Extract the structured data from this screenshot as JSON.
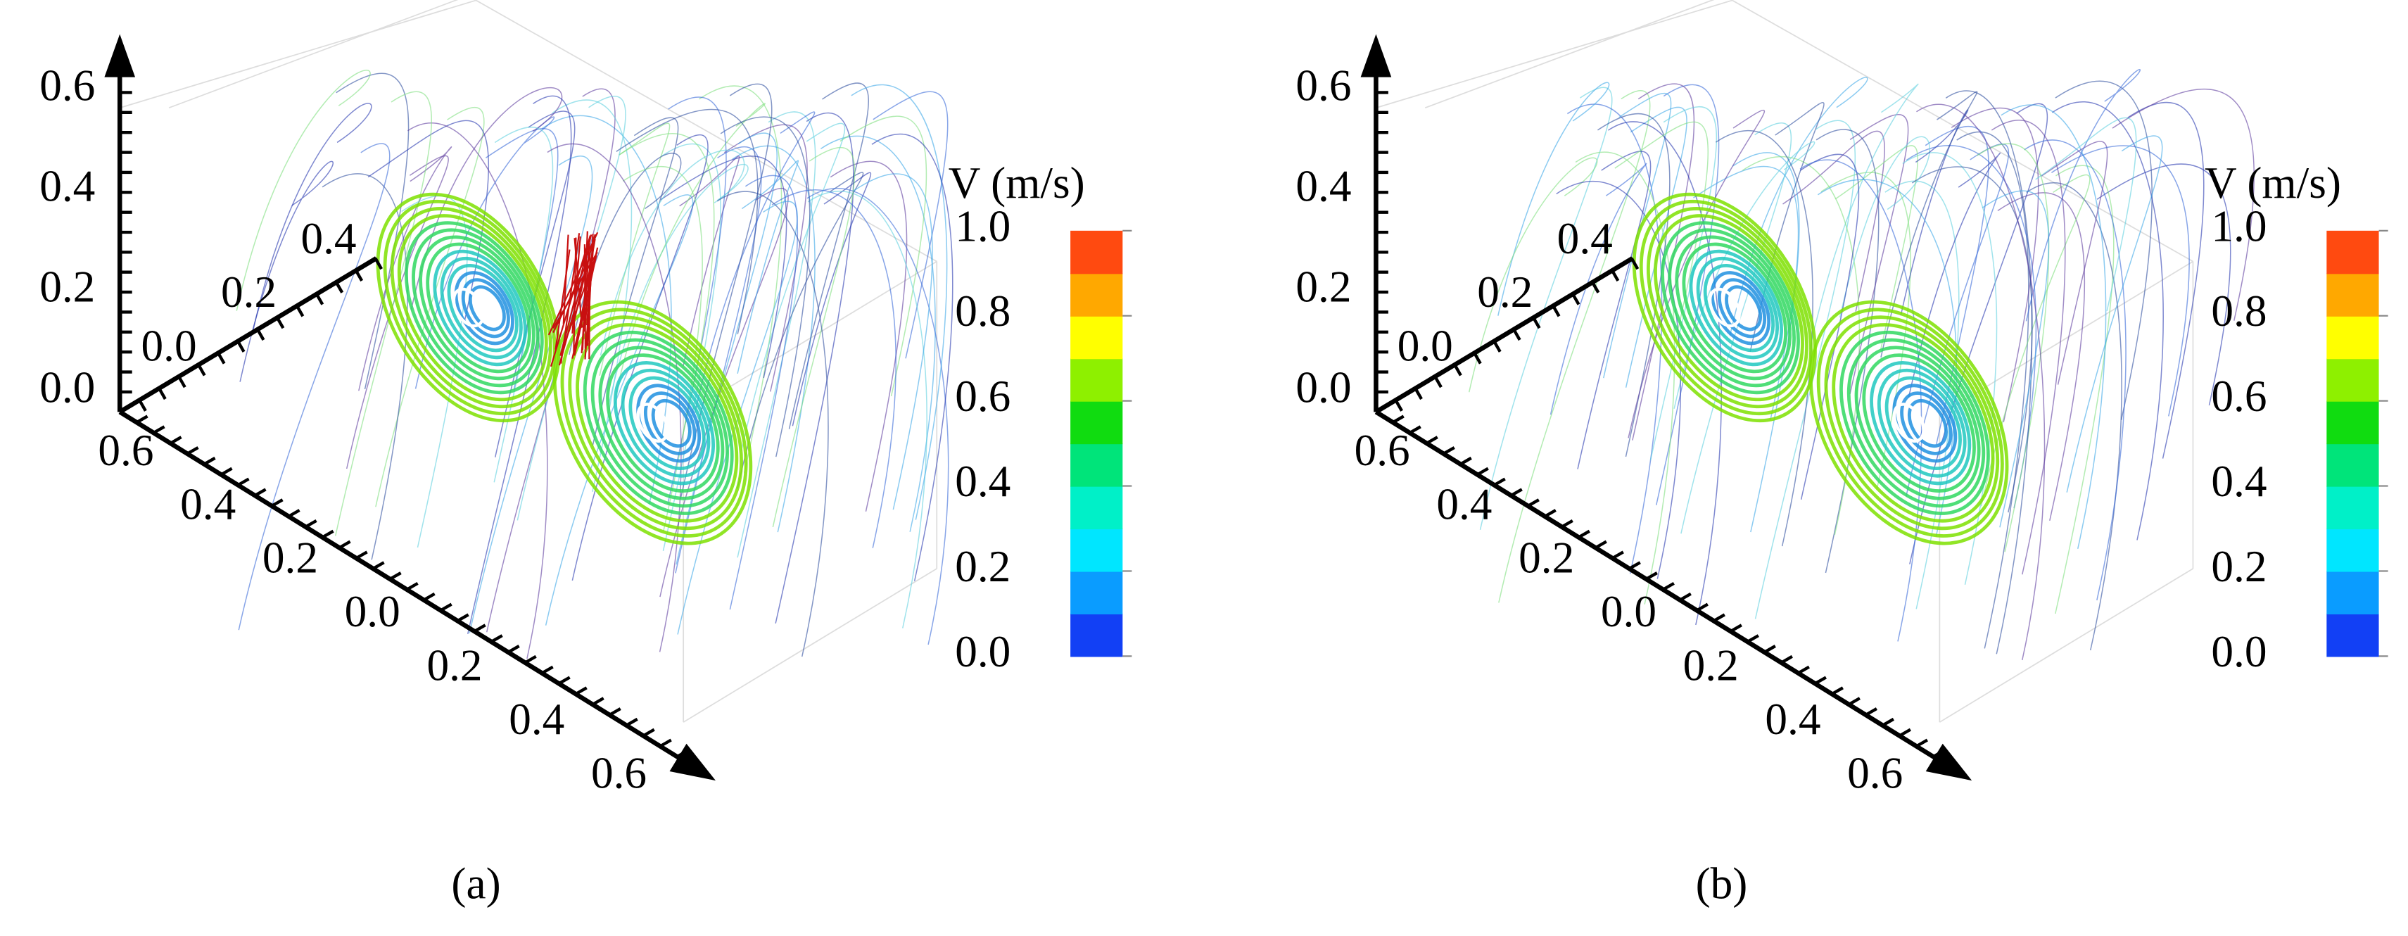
{
  "panels": [
    {
      "label": "(a)",
      "z_ticks": [
        "0.0",
        "0.2",
        "0.4",
        "0.6"
      ],
      "y_ticks": [
        "0.0",
        "0.2",
        "0.4"
      ],
      "x_ticks": [
        "0.6",
        "0.4",
        "0.2",
        "0.0",
        "0.2",
        "0.4",
        "0.6"
      ],
      "colorbar": {
        "title": "V (m/s)",
        "ticks": [
          "0.0",
          "0.2",
          "0.4",
          "0.6",
          "0.8",
          "1.0"
        ],
        "colors": [
          "#1240f5",
          "#0a9cff",
          "#00e6ff",
          "#00f0c8",
          "#00e47a",
          "#10dc10",
          "#8ef000",
          "#ffff00",
          "#ffa800",
          "#ff4a10"
        ]
      }
    },
    {
      "label": "(b)",
      "z_ticks": [
        "0.0",
        "0.2",
        "0.4",
        "0.6"
      ],
      "y_ticks": [
        "0.0",
        "0.2",
        "0.4"
      ],
      "x_ticks": [
        "0.6",
        "0.4",
        "0.2",
        "0.0",
        "0.2",
        "0.4",
        "0.6"
      ],
      "colorbar": {
        "title": "V (m/s)",
        "ticks": [
          "0.0",
          "0.2",
          "0.4",
          "0.6",
          "0.8",
          "1.0"
        ],
        "colors": [
          "#1240f5",
          "#0a9cff",
          "#00e6ff",
          "#00f0c8",
          "#00e47a",
          "#10dc10",
          "#8ef000",
          "#ffff00",
          "#ffa800",
          "#ff4a10"
        ]
      }
    }
  ]
}
